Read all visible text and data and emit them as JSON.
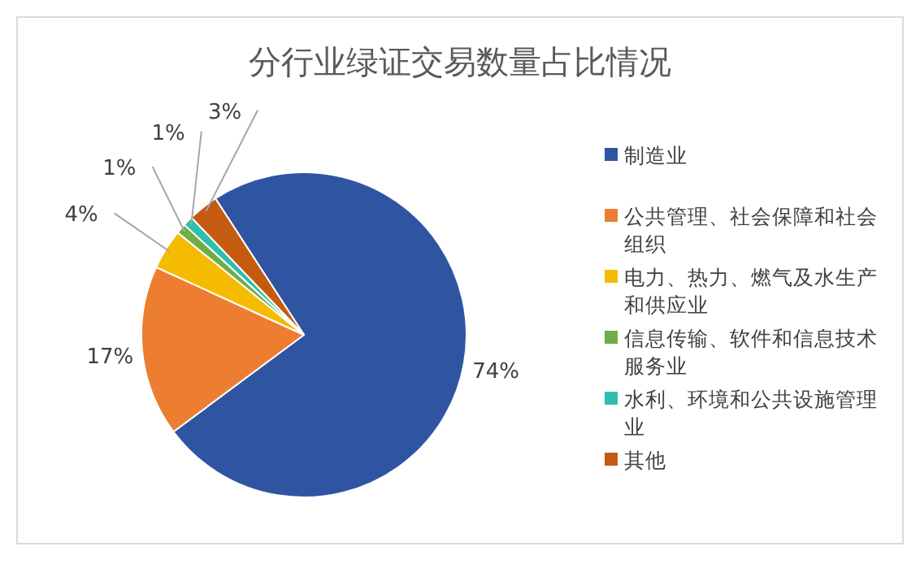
{
  "chart_data": {
    "type": "pie",
    "title": "分行业绿证交易数量占比情况",
    "categories": [
      "制造业",
      "公共管理、社会保障和社会组织",
      "电力、热力、燃气及水生产和供应业",
      "信息传输、软件和信息技术服务业",
      "水利、环境和公共设施管理业",
      "其他"
    ],
    "values": [
      74,
      17,
      4,
      1,
      1,
      3
    ],
    "colors": [
      "#2f55a2",
      "#ed7d31",
      "#f4bb00",
      "#70ad47",
      "#2fbfb0",
      "#c55a11"
    ],
    "value_labels": [
      "74%",
      "17%",
      "4%",
      "1%",
      "1%",
      "3%"
    ],
    "legend": "right"
  }
}
